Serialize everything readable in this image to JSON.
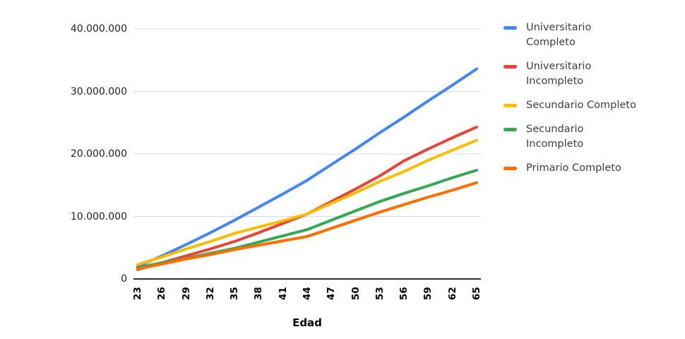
{
  "chart_data": {
    "type": "line",
    "title": "",
    "xlabel": "Edad",
    "ylabel": "",
    "x": [
      23,
      26,
      29,
      32,
      35,
      38,
      41,
      44,
      47,
      50,
      53,
      56,
      59,
      62,
      65
    ],
    "ylim": [
      0,
      40000000
    ],
    "grid": true,
    "legend_position": "right",
    "y_ticks": [
      {
        "value": 0,
        "label": "0"
      },
      {
        "value": 10000000,
        "label": "10.000.000"
      },
      {
        "value": 20000000,
        "label": "20.000.000"
      },
      {
        "value": 30000000,
        "label": "30.000.000"
      },
      {
        "value": 40000000,
        "label": "40.000.000"
      }
    ],
    "series": [
      {
        "name": "Universitario Completo",
        "color": "#4285F4",
        "values": [
          2000000,
          3700000,
          5500000,
          7400000,
          9400000,
          11500000,
          13600000,
          15800000,
          18300000,
          20800000,
          23400000,
          25900000,
          28500000,
          31000000,
          33600000
        ]
      },
      {
        "name": "Universitario Incompleto",
        "color": "#EA4335",
        "values": [
          1500000,
          2600000,
          3700000,
          4800000,
          6000000,
          7400000,
          8900000,
          10400000,
          12400000,
          14400000,
          16500000,
          18900000,
          20800000,
          22600000,
          24300000
        ]
      },
      {
        "name": "Secundario Completo",
        "color": "#FBBC04",
        "values": [
          2300000,
          3500000,
          4800000,
          6000000,
          7300000,
          8300000,
          9300000,
          10400000,
          12100000,
          13800000,
          15600000,
          17200000,
          19000000,
          20600000,
          22200000
        ]
      },
      {
        "name": "Secundario Incompleto",
        "color": "#34A853",
        "values": [
          1800000,
          2600000,
          3300000,
          4100000,
          4900000,
          5900000,
          6900000,
          7900000,
          9400000,
          10900000,
          12400000,
          13700000,
          14900000,
          16200000,
          17400000
        ]
      },
      {
        "name": "Primario Completo",
        "color": "#FF6D01",
        "values": [
          1600000,
          2400000,
          3200000,
          3900000,
          4700000,
          5400000,
          6100000,
          6800000,
          8100000,
          9400000,
          10700000,
          11900000,
          13100000,
          14200000,
          15400000
        ]
      }
    ]
  },
  "style": {
    "background": "#ffffff",
    "grid_color": "#d9d9d9",
    "axis_color": "#333333",
    "y_label_color": "#212121",
    "x_label_color": "#000000",
    "legend_text_color": "#3c4043",
    "line_width": 4
  }
}
